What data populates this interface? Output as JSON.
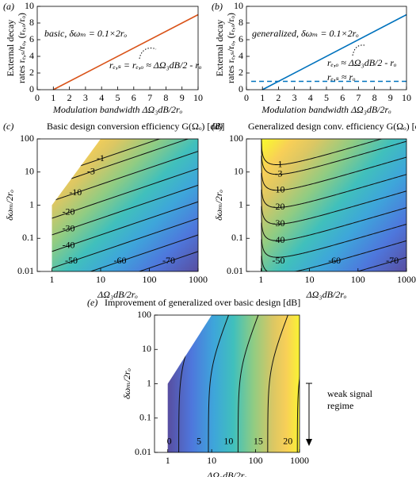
{
  "chart_data": [
    {
      "type": "line",
      "panel": "(a)",
      "xlabel": "Modulation bandwidth ΔΩ₃dB/2rₒ",
      "ylabel": [
        "External decay",
        "rates rₑ,ₛ/rₒ, (rₑ,ₒ/rₒ)"
      ],
      "xlim": [
        0,
        10
      ],
      "ylim": [
        0,
        10
      ],
      "xticks": [
        0,
        1,
        2,
        3,
        4,
        5,
        6,
        7,
        8,
        9,
        10
      ],
      "yticks": [
        0,
        2,
        4,
        6,
        8,
        10
      ],
      "series": [
        {
          "x": [
            1,
            10
          ],
          "values": [
            0,
            9
          ],
          "color": "#d95319"
        }
      ],
      "annotations": [
        "basic,  δωₘ = 0.1×2rₒ",
        "rₑ,ₛ = rₑ,ₒ ≈ ΔΩ₃dB/2 - rₒ"
      ]
    },
    {
      "type": "line",
      "panel": "(b)",
      "xlabel": "Modulation bandwidth ΔΩ₃dB/2rₒ",
      "ylabel": [
        "External decay",
        "rates rₑ,ₛ/rₒ, (rₑ,ₒ/rₒ)"
      ],
      "xlim": [
        0,
        10
      ],
      "ylim": [
        0,
        10
      ],
      "xticks": [
        0,
        1,
        2,
        3,
        4,
        5,
        6,
        7,
        8,
        9,
        10
      ],
      "yticks": [
        0,
        2,
        4,
        6,
        8,
        10
      ],
      "series": [
        {
          "x": [
            1,
            10
          ],
          "values": [
            0,
            9
          ],
          "color": "#0072bd"
        },
        {
          "x": [
            0.3,
            10
          ],
          "values": [
            1,
            1
          ],
          "color": "#0072bd",
          "dash": true
        }
      ],
      "annotations": [
        "generalized,  δωₘ = 0.1×2rₒ",
        "rₑ,ₒ ≈ ΔΩ₃dB/2 - rₒ",
        "rₑ,ₛ ≈ rₒ"
      ]
    },
    {
      "type": "contour",
      "panel": "(c)",
      "title": "Basic design conversion efficiency G(Ωₒ) [dB]",
      "xlabel": "ΔΩ₃dB/2rₒ",
      "ylabel": "δωₘ/2rₒ",
      "log": true,
      "xlim": [
        0.5,
        1000
      ],
      "ylim": [
        0.01,
        100
      ],
      "xticks": [
        1,
        10,
        100,
        1000
      ],
      "yticks": [
        0.01,
        0.1,
        1,
        10,
        100
      ],
      "levels": [
        -1,
        -3,
        -10,
        -20,
        -30,
        -40,
        -50,
        -60,
        -70
      ]
    },
    {
      "type": "contour",
      "panel": "(d)",
      "title": "Generalized design conv. efficiency G(Ωₒ) [dB]",
      "xlabel": "ΔΩ₃dB/2rₒ",
      "ylabel": "δωₘ/2rₒ",
      "log": true,
      "xlim": [
        0.5,
        1000
      ],
      "ylim": [
        0.01,
        100
      ],
      "xticks": [
        1,
        10,
        100,
        1000
      ],
      "yticks": [
        0.01,
        0.1,
        1,
        10,
        100
      ],
      "levels": [
        -1,
        -3,
        -10,
        -20,
        -30,
        -40,
        -50,
        -60,
        -70
      ]
    },
    {
      "type": "contour",
      "panel": "(e)",
      "title": "Improvement of generalized over basic design [dB]",
      "xlabel": "ΔΩ₃dB/2rₒ",
      "ylabel": "δωₘ/2rₒ",
      "log": true,
      "xlim": [
        0.5,
        1000
      ],
      "ylim": [
        0.01,
        100
      ],
      "xticks": [
        1,
        10,
        100,
        1000
      ],
      "yticks": [
        0.01,
        0.1,
        1,
        10,
        100
      ],
      "levels": [
        0,
        5,
        10,
        15,
        20
      ],
      "annotations": [
        "weak signal",
        "regime"
      ]
    }
  ]
}
